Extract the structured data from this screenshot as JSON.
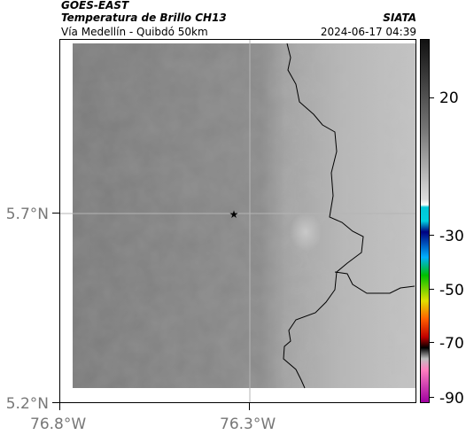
{
  "header": {
    "satellite": "GOES-EAST",
    "product": "Temperatura de Brillo CH13",
    "organization": "SIATA",
    "region": "Vía Medellín - Quibdó 50km",
    "timestamp": "2024-06-17 04:39"
  },
  "map": {
    "marker_icon": "star-icon",
    "latitude_labels": [
      "5.7°N",
      "5.2°N"
    ],
    "longitude_labels": [
      "76.8°W",
      "76.3°W"
    ]
  },
  "colorbar": {
    "tick_labels": [
      "20",
      "-30",
      "-50",
      "-70",
      "-90"
    ],
    "colors": [
      "#111111",
      "#777777",
      "#dddddd",
      "#ffffff",
      "#00c8d8",
      "#000080",
      "#00b0ff",
      "#00c000",
      "#e0e000",
      "#ff6000",
      "#c00000",
      "#000000",
      "#c0c0c0",
      "#ff80c0",
      "#a000a0"
    ]
  }
}
